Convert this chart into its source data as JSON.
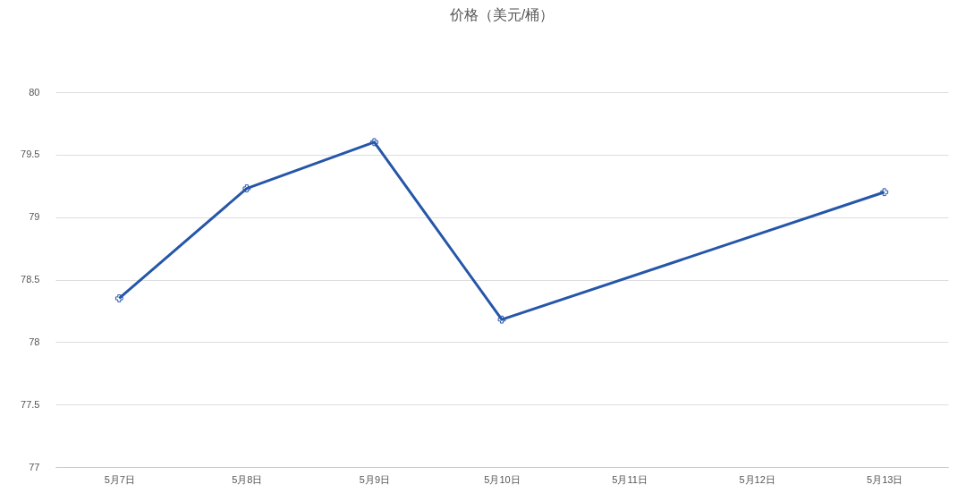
{
  "chart_data": {
    "type": "line",
    "title": "价格（美元/桶）",
    "categories": [
      "5月7日",
      "5月8日",
      "5月9日",
      "5月10日",
      "5月11日",
      "5月12日",
      "5月13日"
    ],
    "series": [
      {
        "color": "#2656a8",
        "values": [
          78.35,
          79.23,
          79.6,
          78.18,
          null,
          null,
          79.2
        ]
      }
    ],
    "ylim": [
      77,
      80
    ],
    "yticks": [
      77,
      77.5,
      78,
      78.5,
      79,
      79.5,
      80
    ],
    "grid": "y",
    "marker": "cross"
  }
}
